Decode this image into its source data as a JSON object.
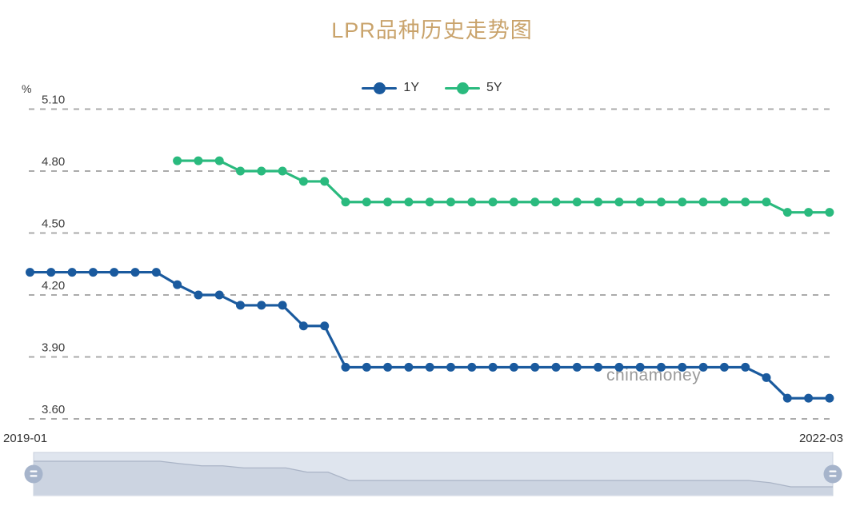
{
  "title": "LPR品种历史走势图",
  "watermark": "chinamoney",
  "y_axis": {
    "unit": "%"
  },
  "x_axis": {
    "start_label": "2019-01",
    "end_label": "2022-03"
  },
  "colors": {
    "title": "#c9a36b",
    "series_1y": "#1a5a9e",
    "series_5y": "#2aba7e",
    "grid": "#ababab",
    "axis_text": "#3d3d3d",
    "watermark": "#9a9a9a",
    "slider_track": "#dfe5ee",
    "slider_shadow": "#ccd4e1",
    "slider_line": "#aab4c6",
    "slider_border": "#c9d0dd",
    "slider_handle": "#a6b4cb"
  },
  "chart_data": {
    "type": "line",
    "title": "LPR品种历史走势图",
    "legend_position": "top-center",
    "grid": "horizontal-dashed",
    "ylabel_unit": "%",
    "yticks": [
      5.1,
      4.8,
      4.5,
      4.2,
      3.9,
      3.6
    ],
    "ylim": [
      3.6,
      5.1
    ],
    "x_range_labels": [
      "2019-01",
      "2022-03"
    ],
    "datazoom_slider_shadow_series": "1Y",
    "x": [
      "2019-01",
      "2019-02",
      "2019-03",
      "2019-04",
      "2019-05",
      "2019-06",
      "2019-07",
      "2019-08",
      "2019-09",
      "2019-10",
      "2019-11",
      "2019-12",
      "2020-01",
      "2020-02",
      "2020-03",
      "2020-04",
      "2020-05",
      "2020-06",
      "2020-07",
      "2020-08",
      "2020-09",
      "2020-10",
      "2020-11",
      "2020-12",
      "2021-01",
      "2021-02",
      "2021-03",
      "2021-04",
      "2021-05",
      "2021-06",
      "2021-07",
      "2021-08",
      "2021-09",
      "2021-10",
      "2021-11",
      "2021-12",
      "2022-01",
      "2022-02",
      "2022-03"
    ],
    "series": [
      {
        "name": "1Y",
        "color": "#1a5a9e",
        "values": [
          4.31,
          4.31,
          4.31,
          4.31,
          4.31,
          4.31,
          4.31,
          4.25,
          4.2,
          4.2,
          4.15,
          4.15,
          4.15,
          4.05,
          4.05,
          3.85,
          3.85,
          3.85,
          3.85,
          3.85,
          3.85,
          3.85,
          3.85,
          3.85,
          3.85,
          3.85,
          3.85,
          3.85,
          3.85,
          3.85,
          3.85,
          3.85,
          3.85,
          3.85,
          3.85,
          3.8,
          3.7,
          3.7,
          3.7
        ]
      },
      {
        "name": "5Y",
        "color": "#2aba7e",
        "values": [
          null,
          null,
          null,
          null,
          null,
          null,
          null,
          4.85,
          4.85,
          4.85,
          4.8,
          4.8,
          4.8,
          4.75,
          4.75,
          4.65,
          4.65,
          4.65,
          4.65,
          4.65,
          4.65,
          4.65,
          4.65,
          4.65,
          4.65,
          4.65,
          4.65,
          4.65,
          4.65,
          4.65,
          4.65,
          4.65,
          4.65,
          4.65,
          4.65,
          4.65,
          4.6,
          4.6,
          4.6
        ]
      }
    ]
  }
}
